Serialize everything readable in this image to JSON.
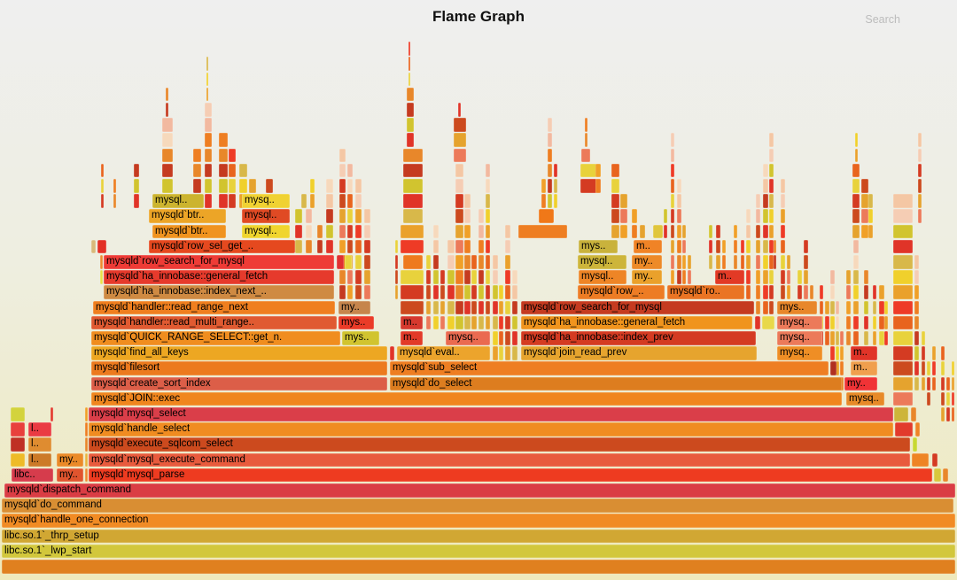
{
  "header": {
    "title": "Flame Graph",
    "search_label": "Search"
  },
  "colors": {
    "background_top": "#efefef",
    "background_bottom": "#efe9bb",
    "text": "#000000",
    "search_text": "#bcbcbc"
  },
  "chart_data": {
    "type": "flamegraph",
    "title": "Flame Graph",
    "orientation": "icicle-up",
    "frames": [
      [
        0,
        2,
        1076,
        "#e0801f",
        ""
      ],
      [
        1,
        2,
        1076,
        "#d2c73c",
        "libc.so.1`_lwp_start"
      ],
      [
        2,
        2,
        1076,
        "#d1a733",
        "libc.so.1`_thrp_setup"
      ],
      [
        3,
        2,
        1076,
        "#f18b24",
        "mysqld`handle_one_connection"
      ],
      [
        4,
        2,
        1074,
        "#d98e33",
        "mysqld`do_command"
      ],
      [
        5,
        5,
        1073,
        "#da3d44",
        "mysqld`dispatch_command"
      ],
      [
        6,
        13,
        47,
        "#d63c4c",
        "libc.."
      ],
      [
        6,
        64,
        30,
        "#e0542e",
        "my.."
      ],
      [
        6,
        96,
        3,
        "#ee8a2e",
        ""
      ],
      [
        6,
        100,
        952,
        "#ee3b20",
        "mysqld`mysql_parse"
      ],
      [
        6,
        1054,
        8,
        "#d8c83c",
        ""
      ],
      [
        6,
        1064,
        6,
        "#e8872a",
        ""
      ],
      [
        7,
        12,
        16,
        "#eebb28",
        ""
      ],
      [
        7,
        32,
        26,
        "#cc7a28",
        "l.."
      ],
      [
        7,
        64,
        30,
        "#ea8a28",
        "my.."
      ],
      [
        7,
        96,
        3,
        "#e8b43c",
        ""
      ],
      [
        7,
        100,
        927,
        "#e85b3d",
        "mysqld`mysql_execute_command"
      ],
      [
        7,
        1029,
        19,
        "#ee8424",
        ""
      ],
      [
        7,
        1052,
        6,
        "#d43b22",
        ""
      ],
      [
        8,
        12,
        16,
        "#bf3024",
        ""
      ],
      [
        8,
        32,
        26,
        "#df8c30",
        "l.."
      ],
      [
        8,
        100,
        927,
        "#cc4a1e",
        "mysqld`execute_sqlcom_select"
      ],
      [
        8,
        1030,
        5,
        "#c8d832",
        ""
      ],
      [
        9,
        12,
        16,
        "#e8403c",
        ""
      ],
      [
        9,
        32,
        26,
        "#ea3b43",
        "l.."
      ],
      [
        9,
        100,
        908,
        "#f08c21",
        "mysqld`handle_select"
      ],
      [
        9,
        1010,
        20,
        "#e23a2c",
        ""
      ],
      [
        9,
        1033,
        5,
        "#ee8424",
        ""
      ],
      [
        10,
        12,
        16,
        "#d3d33c",
        ""
      ],
      [
        10,
        57,
        3,
        "#e23a2c",
        ""
      ],
      [
        10,
        100,
        908,
        "#da3e49",
        "mysqld`mysql_select"
      ],
      [
        10,
        1009,
        16,
        "#cdb53a",
        ""
      ],
      [
        10,
        1028,
        6,
        "#e8872a",
        ""
      ],
      [
        11,
        103,
        847,
        "#f0861e",
        "mysqld`JOIN::exec"
      ],
      [
        11,
        955,
        43,
        "#e78a28",
        "mysq.."
      ],
      [
        12,
        103,
        334,
        "#dc5e48",
        "mysqld`create_sort_index"
      ],
      [
        12,
        440,
        510,
        "#dd7d1f",
        "mysqld`do_select"
      ],
      [
        12,
        953,
        37,
        "#f03336",
        "my.."
      ],
      [
        13,
        103,
        334,
        "#ec7a1e",
        "mysqld`filesort"
      ],
      [
        13,
        440,
        495,
        "#ee7e22",
        "mysqld`sub_select"
      ],
      [
        13,
        937,
        7,
        "#b03020",
        ""
      ],
      [
        13,
        960,
        30,
        "#f09f4e",
        "m.."
      ],
      [
        14,
        103,
        334,
        "#eda722",
        "mysqld`find_all_keys"
      ],
      [
        14,
        440,
        5,
        "#e03428",
        ""
      ],
      [
        14,
        448,
        105,
        "#eca42c",
        "mysqld`eval.."
      ],
      [
        14,
        588,
        266,
        "#e6a42e",
        "mysqld`join_read_prev"
      ],
      [
        14,
        877,
        51,
        "#ef8e25",
        "mysq.."
      ],
      [
        14,
        960,
        30,
        "#e03428",
        "m.."
      ],
      [
        15,
        103,
        281,
        "#f08d1f",
        "mysqld`QUICK_RANGE_SELECT::get_n."
      ],
      [
        15,
        386,
        42,
        "#d1c42f",
        "mys.."
      ],
      [
        15,
        452,
        25,
        "#e23a28",
        "m.."
      ],
      [
        15,
        503,
        50,
        "#ea6a50",
        "mysq.."
      ],
      [
        15,
        588,
        265,
        "#d43b22",
        "mysqld`ha_innobase::index_prev"
      ],
      [
        15,
        877,
        51,
        "#ec7a5a",
        "mysq.."
      ],
      [
        16,
        103,
        277,
        "#e05a31",
        "mysqld`handler::read_multi_range.."
      ],
      [
        16,
        382,
        40,
        "#ea3b28",
        "mys.."
      ],
      [
        16,
        452,
        25,
        "#d6392e",
        "m.."
      ],
      [
        16,
        588,
        261,
        "#f0941d",
        "mysqld`ha_innobase::general_fetch"
      ],
      [
        16,
        852,
        6,
        "#e03428",
        ""
      ],
      [
        16,
        860,
        14,
        "#e8d84a",
        ""
      ],
      [
        16,
        877,
        51,
        "#ec7a5a",
        "mysq.."
      ],
      [
        17,
        105,
        273,
        "#ef7f1f",
        "mysqld`handler::read_range_next"
      ],
      [
        17,
        382,
        36,
        "#c6854c",
        "my.."
      ],
      [
        17,
        588,
        263,
        "#c53b20",
        "mysqld`row_search_for_mysql"
      ],
      [
        17,
        877,
        45,
        "#e8872a",
        "mys.."
      ],
      [
        18,
        117,
        260,
        "#cf8a42",
        "mysqld`ha_innobase::index_next_.."
      ],
      [
        18,
        652,
        98,
        "#ed7c24",
        "mysqld`row_.."
      ],
      [
        18,
        753,
        87,
        "#ea7424",
        "mysqld`ro.."
      ],
      [
        19,
        113,
        3,
        "#e8e049",
        ""
      ],
      [
        19,
        117,
        260,
        "#e63a2c",
        "mysqld`ha_innobase::general_fetch"
      ],
      [
        19,
        653,
        54,
        "#ee8526",
        "mysql.."
      ],
      [
        19,
        713,
        34,
        "#eaa12b",
        "my.."
      ],
      [
        19,
        807,
        33,
        "#e23a26",
        "m.."
      ],
      [
        20,
        113,
        3,
        "#ee8a2e",
        ""
      ],
      [
        20,
        117,
        260,
        "#ee3b36",
        "mysqld`row_search_for_mysql"
      ],
      [
        20,
        380,
        8,
        "#e03030",
        ""
      ],
      [
        20,
        389,
        8,
        "#e8d23c",
        ""
      ],
      [
        20,
        455,
        22,
        "#ee7a1e",
        ""
      ],
      [
        20,
        652,
        55,
        "#cdb53a",
        "mysql.."
      ],
      [
        20,
        713,
        34,
        "#ed8a28",
        "my.."
      ],
      [
        21,
        103,
        5,
        "#d9b97a",
        ""
      ],
      [
        21,
        110,
        10,
        "#e23026",
        ""
      ],
      [
        21,
        168,
        165,
        "#e5491f",
        "mysqld`row_sel_get_.."
      ],
      [
        21,
        653,
        44,
        "#c9b23c",
        "mys.."
      ],
      [
        21,
        715,
        32,
        "#f08326",
        "m.."
      ],
      [
        22,
        172,
        83,
        "#f0931f",
        "mysqld`btr.."
      ],
      [
        22,
        273,
        54,
        "#f0d52e",
        "mysql.."
      ],
      [
        22,
        737,
        11,
        "#e0c63c",
        ""
      ],
      [
        23,
        168,
        87,
        "#eca527",
        "mysqld`btr.."
      ],
      [
        23,
        273,
        54,
        "#e04a24",
        "mysql.."
      ],
      [
        23,
        608,
        17,
        "#f07818",
        ""
      ],
      [
        24,
        172,
        58,
        "#ccb42f",
        "mysql.."
      ],
      [
        24,
        273,
        54,
        "#f0d232",
        "mysq.."
      ]
    ],
    "clutter_columns": [
      [
        114,
        3,
        24,
        26
      ],
      [
        128,
        3,
        24,
        25
      ],
      [
        151,
        6,
        24,
        26
      ],
      [
        183,
        12,
        24,
        29
      ],
      [
        187,
        3,
        30,
        31
      ],
      [
        218,
        9,
        24,
        27
      ],
      [
        231,
        8,
        24,
        30
      ],
      [
        233,
        2,
        31,
        33
      ],
      [
        247,
        10,
        24,
        28
      ],
      [
        258,
        8,
        24,
        27
      ],
      [
        270,
        9,
        24,
        26
      ],
      [
        281,
        8,
        24,
        25
      ],
      [
        300,
        8,
        24,
        25
      ],
      [
        312,
        5,
        24,
        24
      ],
      [
        340,
        6,
        24,
        24
      ],
      [
        350,
        5,
        24,
        25
      ],
      [
        333,
        8,
        21,
        23
      ],
      [
        345,
        7,
        18,
        23
      ],
      [
        358,
        6,
        18,
        22
      ],
      [
        368,
        8,
        18,
        25
      ],
      [
        383,
        7,
        18,
        27
      ],
      [
        392,
        6,
        18,
        26
      ],
      [
        401,
        7,
        18,
        25
      ],
      [
        411,
        7,
        18,
        23
      ],
      [
        446,
        3,
        18,
        21
      ],
      [
        452,
        26,
        17,
        19
      ],
      [
        452,
        26,
        21,
        22
      ],
      [
        455,
        22,
        23,
        27
      ],
      [
        459,
        8,
        28,
        31
      ],
      [
        461,
        2,
        32,
        34
      ],
      [
        481,
        5,
        16,
        20
      ],
      [
        489,
        6,
        16,
        22
      ],
      [
        497,
        5,
        16,
        19
      ],
      [
        505,
        8,
        16,
        21
      ],
      [
        514,
        9,
        16,
        26
      ],
      [
        512,
        14,
        27,
        29
      ],
      [
        517,
        3,
        30,
        30
      ],
      [
        524,
        7,
        16,
        24
      ],
      [
        532,
        6,
        16,
        20
      ],
      [
        540,
        6,
        16,
        23
      ],
      [
        548,
        5,
        16,
        26
      ],
      [
        556,
        6,
        14,
        20
      ],
      [
        563,
        5,
        14,
        18
      ],
      [
        570,
        6,
        14,
        22
      ],
      [
        578,
        6,
        14,
        19
      ],
      [
        585,
        55,
        22,
        22
      ],
      [
        611,
        5,
        24,
        25
      ],
      [
        618,
        5,
        24,
        29
      ],
      [
        625,
        4,
        24,
        26
      ],
      [
        655,
        18,
        25,
        26
      ],
      [
        656,
        10,
        27,
        27
      ],
      [
        660,
        3,
        28,
        29
      ],
      [
        672,
        6,
        25,
        26
      ],
      [
        690,
        9,
        22,
        26
      ],
      [
        700,
        8,
        22,
        24
      ],
      [
        713,
        6,
        22,
        23
      ],
      [
        722,
        6,
        22,
        22
      ],
      [
        749,
        4,
        22,
        23
      ],
      [
        757,
        4,
        19,
        28
      ],
      [
        764,
        5,
        19,
        25
      ],
      [
        770,
        4,
        19,
        22
      ],
      [
        776,
        4,
        19,
        20
      ],
      [
        800,
        4,
        20,
        22
      ],
      [
        808,
        5,
        20,
        22
      ],
      [
        815,
        4,
        20,
        21
      ],
      [
        828,
        4,
        20,
        22
      ],
      [
        836,
        4,
        20,
        21
      ],
      [
        842,
        5,
        18,
        23
      ],
      [
        853,
        5,
        17,
        24
      ],
      [
        861,
        6,
        17,
        26
      ],
      [
        868,
        5,
        17,
        28
      ],
      [
        873,
        3,
        20,
        21
      ],
      [
        881,
        5,
        18,
        25
      ],
      [
        888,
        4,
        18,
        20
      ],
      [
        900,
        5,
        18,
        19
      ],
      [
        907,
        5,
        18,
        21
      ],
      [
        914,
        4,
        18,
        18
      ],
      [
        925,
        4,
        15,
        18
      ],
      [
        931,
        5,
        15,
        17
      ],
      [
        937,
        5,
        14,
        19
      ],
      [
        943,
        4,
        12,
        17
      ],
      [
        948,
        4,
        12,
        15
      ],
      [
        955,
        5,
        15,
        19
      ],
      [
        963,
        6,
        15,
        21
      ],
      [
        975,
        5,
        15,
        19
      ],
      [
        985,
        4,
        15,
        18
      ],
      [
        992,
        6,
        15,
        18
      ],
      [
        998,
        4,
        15,
        17
      ],
      [
        962,
        8,
        22,
        26
      ],
      [
        965,
        3,
        27,
        28
      ],
      [
        972,
        8,
        22,
        25
      ],
      [
        980,
        5,
        22,
        24
      ],
      [
        1008,
        22,
        11,
        24
      ],
      [
        1032,
        5,
        12,
        20
      ],
      [
        1036,
        4,
        23,
        28
      ],
      [
        1040,
        4,
        12,
        15
      ],
      [
        1046,
        4,
        11,
        13
      ],
      [
        1052,
        4,
        12,
        14
      ],
      [
        1062,
        4,
        10,
        14
      ],
      [
        1068,
        4,
        10,
        12
      ],
      [
        1074,
        3,
        10,
        13
      ],
      [
        96,
        3,
        8,
        10
      ]
    ],
    "palette": [
      "#e8641e",
      "#e03428",
      "#f0a028",
      "#e8d23c",
      "#d8b84a",
      "#ee7e22",
      "#d43b22",
      "#f0d02c",
      "#e8872a",
      "#cc4a1e",
      "#eaa12b",
      "#c53b20",
      "#e5a32e",
      "#ee3b26",
      "#d1c42f",
      "#ec7a5a"
    ],
    "pale_palette": [
      "#f4c7a4",
      "#f6d9bc",
      "#f2b9a0",
      "#f5cdb4"
    ]
  }
}
